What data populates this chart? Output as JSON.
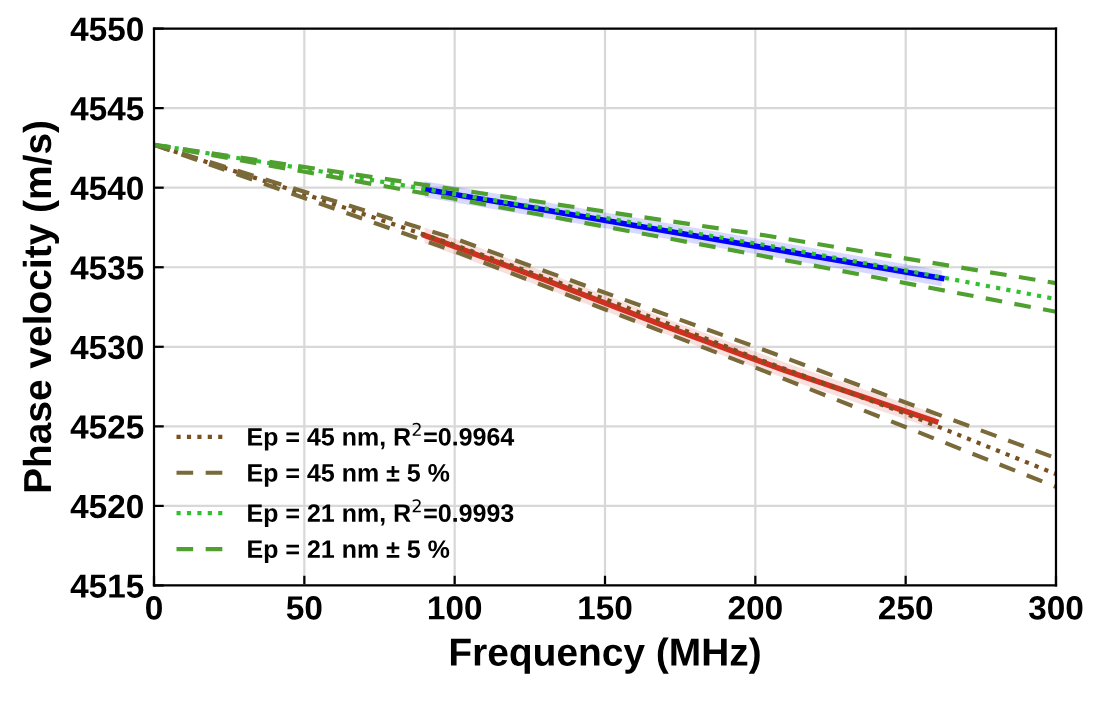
{
  "chart_data": {
    "type": "line",
    "xlabel": "Frequency (MHz)",
    "ylabel": "Phase velocity (m/s)",
    "xlim": [
      0,
      300
    ],
    "ylim": [
      4515,
      4550
    ],
    "xticks": [
      0,
      50,
      100,
      150,
      200,
      250,
      300
    ],
    "yticks": [
      4515,
      4520,
      4525,
      4530,
      4535,
      4540,
      4545,
      4550
    ],
    "grid": true,
    "legend": "bottom left",
    "series": [
      {
        "color": "#d03020",
        "x": [
          90,
          130,
          170,
          210,
          260
        ],
        "values": [
          4537.0,
          4534.2,
          4531.3,
          4528.5,
          4525.3
        ],
        "lower": [
          4536.5,
          4533.7,
          4530.8,
          4528.0,
          4524.8
        ],
        "upper": [
          4537.5,
          4534.7,
          4531.8,
          4529.0,
          4525.8
        ],
        "line_style": "solid"
      },
      {
        "color": "#0000ff",
        "x": [
          90,
          130,
          170,
          210,
          262
        ],
        "values": [
          4539.9,
          4538.6,
          4537.3,
          4536.0,
          4534.3
        ],
        "lower": [
          4539.4,
          4538.1,
          4536.8,
          4535.5,
          4533.8
        ],
        "upper": [
          4540.4,
          4539.1,
          4537.8,
          4536.5,
          4534.8
        ],
        "line_style": "solid"
      },
      {
        "name": "Ep = 45 nm, R$^{2}$=0.9964",
        "color": "#7a5020",
        "x": [
          0,
          50,
          100,
          150,
          200,
          250,
          300
        ],
        "values": [
          4542.7,
          4539.6,
          4536.4,
          4533.0,
          4529.3,
          4525.8,
          4522.0
        ],
        "line_style": "dotted"
      },
      {
        "name": "Ep = 45 nm ± 5 %",
        "color": "#7a6a3a",
        "x": [
          0,
          100,
          200,
          300
        ],
        "values": [
          4542.7,
          4536.8,
          4530.0,
          4523.0
        ],
        "line_style": "dashed"
      },
      {
        "color": "#7a6a3a",
        "x": [
          0,
          100,
          200,
          300
        ],
        "values": [
          4542.7,
          4536.0,
          4528.7,
          4521.2
        ],
        "line_style": "dashed"
      },
      {
        "name": "Ep = 21 nm, R$^{2}$=0.9993",
        "color": "#30c030",
        "x": [
          0,
          50,
          100,
          150,
          200,
          250,
          300
        ],
        "values": [
          4542.7,
          4541.2,
          4539.6,
          4538.1,
          4536.5,
          4534.8,
          4533.0
        ],
        "line_style": "dotted"
      },
      {
        "name": "Ep = 21 nm ± 5 %",
        "color": "#50a030",
        "x": [
          0,
          100,
          200,
          300
        ],
        "values": [
          4542.7,
          4539.9,
          4537.1,
          4534.0
        ],
        "line_style": "dashed"
      },
      {
        "color": "#50a030",
        "x": [
          0,
          100,
          200,
          300
        ],
        "values": [
          4542.7,
          4539.3,
          4535.8,
          4532.2
        ],
        "line_style": "dashed"
      }
    ]
  }
}
